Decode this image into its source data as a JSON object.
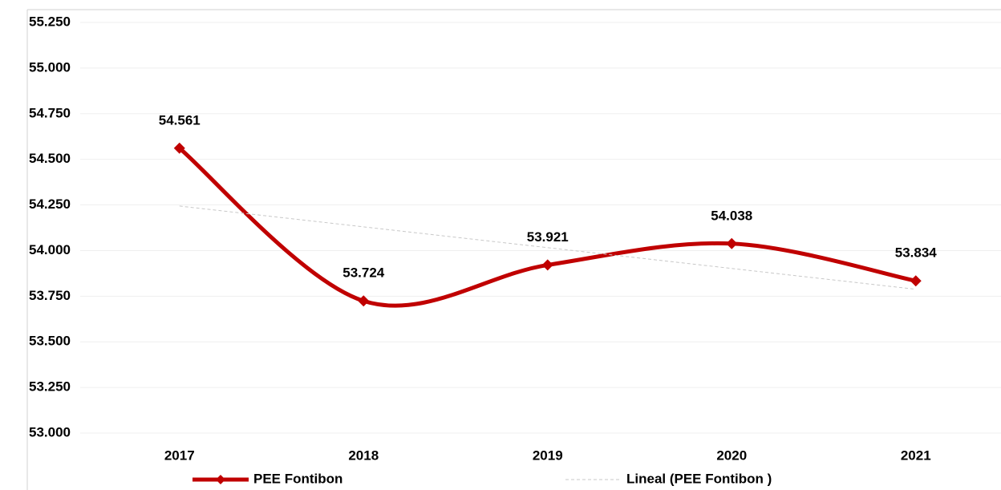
{
  "chart_data": {
    "type": "line",
    "categories": [
      "2017",
      "2018",
      "2019",
      "2020",
      "2021"
    ],
    "series": [
      {
        "name": "PEE Fontibon",
        "color": "#c00000",
        "values": [
          54561,
          53724,
          53921,
          54038,
          53834
        ],
        "value_labels": [
          "54.561",
          "53.724",
          "53.921",
          "54.038",
          "53.834"
        ]
      },
      {
        "name": "Lineal (PEE Fontibon )",
        "color": "#c8c8c8",
        "trendline": true,
        "values": [
          54244,
          54130,
          54016,
          53902,
          53788
        ]
      }
    ],
    "ylim": [
      53000,
      55250
    ],
    "yticks": [
      {
        "value": 53000,
        "label": "53.000"
      },
      {
        "value": 53250,
        "label": "53.250"
      },
      {
        "value": 53500,
        "label": "53.500"
      },
      {
        "value": 53750,
        "label": "53.750"
      },
      {
        "value": 54000,
        "label": "54.000"
      },
      {
        "value": 54250,
        "label": "54.250"
      },
      {
        "value": 54500,
        "label": "54.500"
      },
      {
        "value": 54750,
        "label": "54.750"
      },
      {
        "value": 55000,
        "label": "55.000"
      },
      {
        "value": 55250,
        "label": "55.250"
      }
    ],
    "grid": true,
    "legend": "bottom"
  }
}
